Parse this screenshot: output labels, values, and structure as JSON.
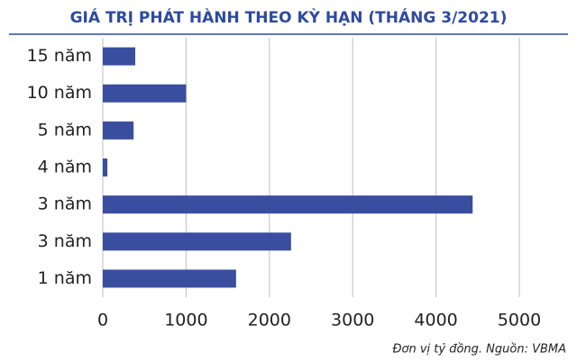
{
  "chart_data": {
    "type": "bar",
    "orientation": "horizontal",
    "title": "GIÁ TRỊ PHÁT HÀNH THEO KỲ HẠN (THÁNG 3/2021)",
    "note": "Đơn vị tỷ đồng. Nguồn: VBMA",
    "categories": [
      "15 năm",
      "10 năm",
      "5 năm",
      "4 năm",
      "3 năm",
      "3 năm",
      "1 năm"
    ],
    "values": [
      390,
      1000,
      370,
      55,
      4440,
      2260,
      1600
    ],
    "color": "#3a4ea0",
    "xlim": [
      0,
      5000
    ],
    "xticks": [
      0,
      1000,
      2000,
      3000,
      4000,
      5000
    ],
    "grid": true
  }
}
